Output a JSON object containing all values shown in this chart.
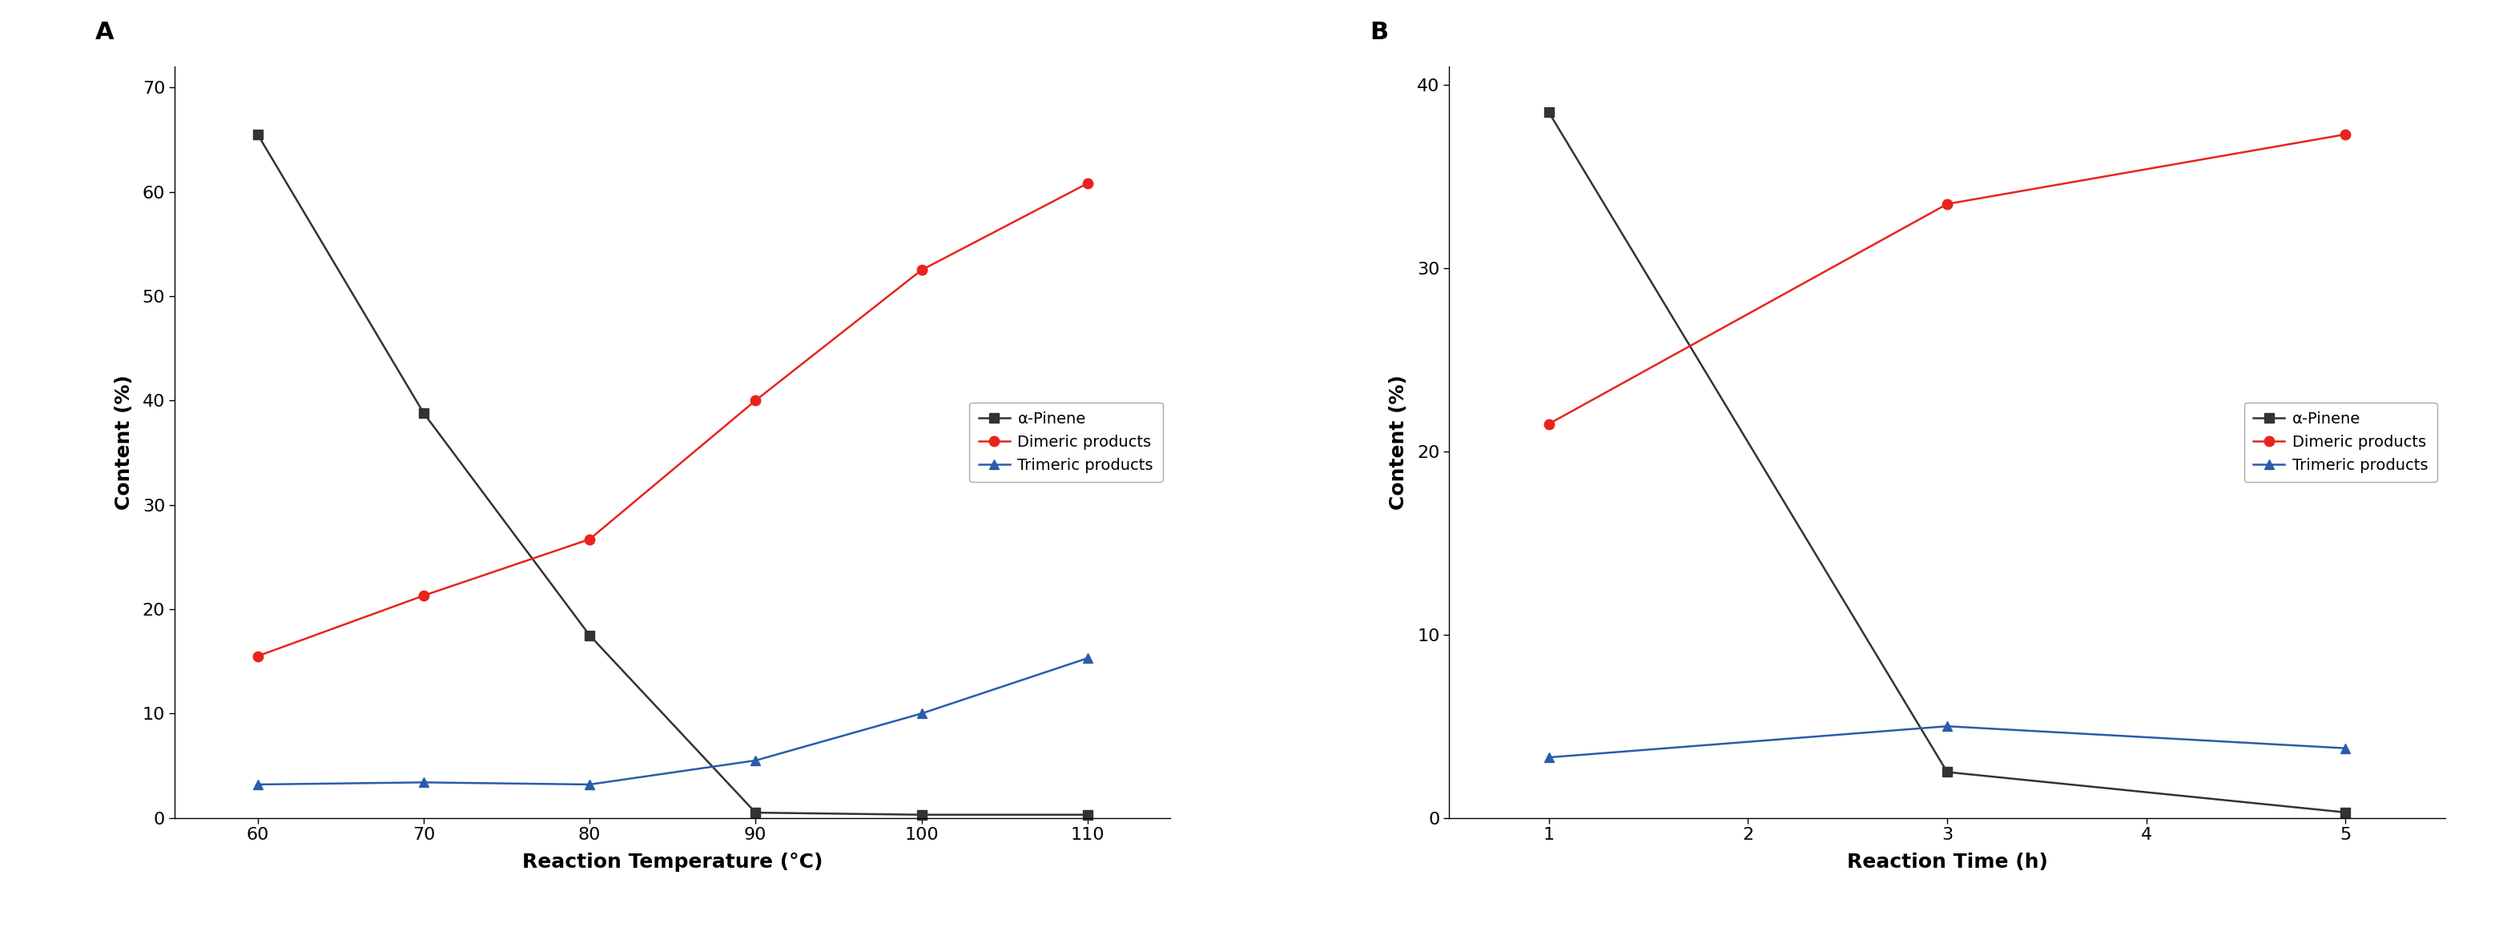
{
  "panel_A": {
    "label": "A",
    "xlabel": "Reaction Temperature (°C)",
    "ylabel": "Content (%)",
    "xlim": [
      55,
      115
    ],
    "ylim": [
      0,
      72
    ],
    "xticks": [
      60,
      70,
      80,
      90,
      100,
      110
    ],
    "yticks": [
      0,
      10,
      20,
      30,
      40,
      50,
      60,
      70
    ],
    "series": [
      {
        "label": "α-Pinene",
        "color": "#333333",
        "marker": "s",
        "x": [
          60,
          70,
          80,
          90,
          100,
          110
        ],
        "y": [
          65.5,
          38.8,
          17.5,
          0.5,
          0.3,
          0.3
        ]
      },
      {
        "label": "Dimeric products",
        "color": "#e8241c",
        "marker": "o",
        "x": [
          60,
          70,
          80,
          90,
          100,
          110
        ],
        "y": [
          15.5,
          21.3,
          26.7,
          40.0,
          52.5,
          60.8
        ]
      },
      {
        "label": "Trimeric products",
        "color": "#2a5caa",
        "marker": "^",
        "x": [
          60,
          70,
          80,
          90,
          100,
          110
        ],
        "y": [
          3.2,
          3.4,
          3.2,
          5.5,
          10.0,
          15.3
        ]
      }
    ]
  },
  "panel_B": {
    "label": "B",
    "xlabel": "Reaction Time (h)",
    "ylabel": "Content (%)",
    "xlim": [
      0.5,
      5.5
    ],
    "ylim": [
      0,
      41
    ],
    "xticks": [
      1,
      2,
      3,
      4,
      5
    ],
    "yticks": [
      0,
      10,
      20,
      30,
      40
    ],
    "series": [
      {
        "label": "α-Pinene",
        "color": "#333333",
        "marker": "s",
        "x": [
          1,
          3,
          5
        ],
        "y": [
          38.5,
          2.5,
          0.3
        ]
      },
      {
        "label": "Dimeric products",
        "color": "#e8241c",
        "marker": "o",
        "x": [
          1,
          3,
          5
        ],
        "y": [
          21.5,
          33.5,
          37.3
        ]
      },
      {
        "label": "Trimeric products",
        "color": "#2a5caa",
        "marker": "^",
        "x": [
          1,
          3,
          5
        ],
        "y": [
          3.3,
          5.0,
          3.8
        ]
      }
    ]
  },
  "legend": {
    "fontsize": 14,
    "frameon": true
  },
  "line_width": 1.8,
  "marker_size": 9,
  "tick_fontsize": 16,
  "label_fontsize": 18,
  "panel_label_fontsize": 22,
  "background_color": "#ffffff"
}
